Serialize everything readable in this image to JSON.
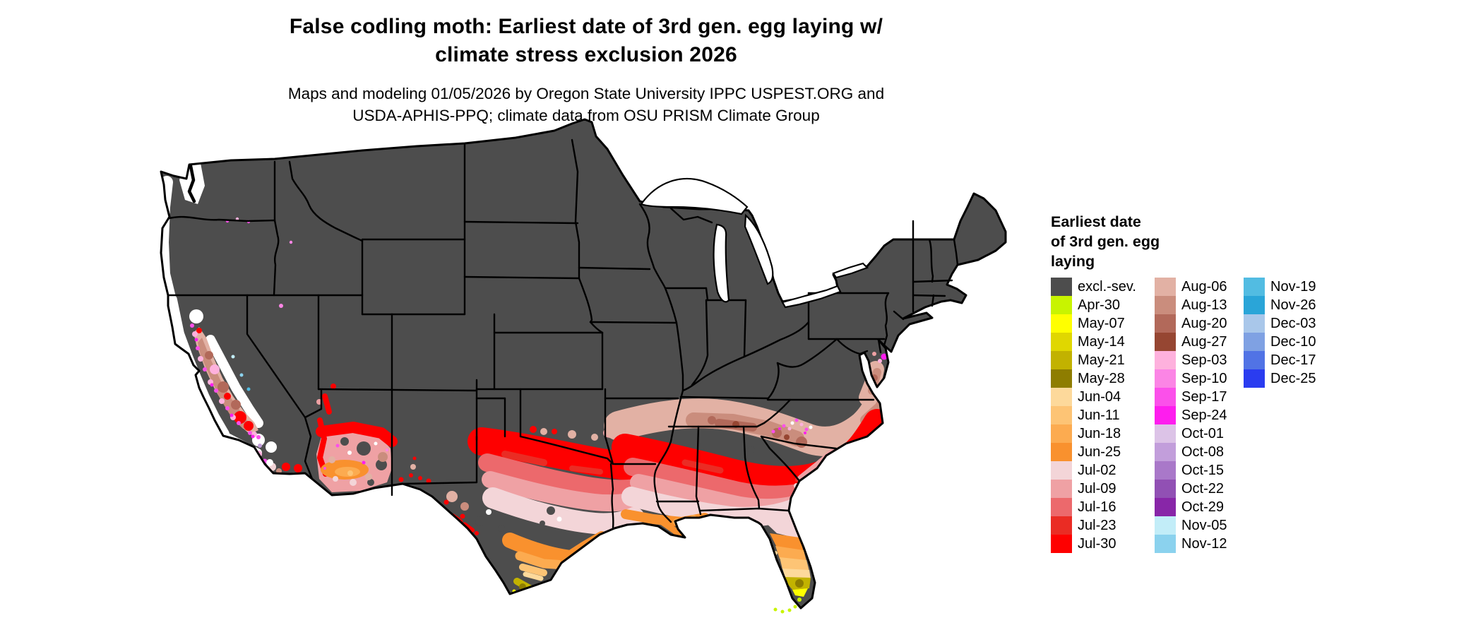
{
  "title": {
    "line1": "False codling moth: Earliest date of 3rd gen. egg laying w/",
    "line2": "climate stress exclusion 2026"
  },
  "subtitle": {
    "line1": "Maps and modeling 01/05/2026 by Oregon State University IPPC USPEST.ORG and",
    "line2": "USDA-APHIS-PPQ; climate data from OSU PRISM Climate Group"
  },
  "legend": {
    "title_lines": [
      "Earliest date",
      "of 3rd gen. egg",
      "laying"
    ],
    "columns": [
      15,
      15,
      6
    ],
    "entries": [
      {
        "label": "excl.-sev.",
        "color": "#4d4d4d"
      },
      {
        "label": "Apr-30",
        "color": "#c8f400"
      },
      {
        "label": "May-07",
        "color": "#ffff00"
      },
      {
        "label": "May-14",
        "color": "#e0d700"
      },
      {
        "label": "May-21",
        "color": "#c2b200"
      },
      {
        "label": "May-28",
        "color": "#8e7d00"
      },
      {
        "label": "Jun-04",
        "color": "#fdd99b"
      },
      {
        "label": "Jun-11",
        "color": "#fdc475"
      },
      {
        "label": "Jun-18",
        "color": "#fcab50"
      },
      {
        "label": "Jun-25",
        "color": "#f9912e"
      },
      {
        "label": "Jul-02",
        "color": "#f3d5d8"
      },
      {
        "label": "Jul-09",
        "color": "#efa1a4"
      },
      {
        "label": "Jul-16",
        "color": "#ec696c"
      },
      {
        "label": "Jul-23",
        "color": "#ea2c24"
      },
      {
        "label": "Jul-30",
        "color": "#fe0000"
      },
      {
        "label": "Aug-06",
        "color": "#e2b1a4"
      },
      {
        "label": "Aug-13",
        "color": "#ca8d7d"
      },
      {
        "label": "Aug-20",
        "color": "#b2695a"
      },
      {
        "label": "Aug-27",
        "color": "#964632"
      },
      {
        "label": "Sep-03",
        "color": "#feb1dd"
      },
      {
        "label": "Sep-10",
        "color": "#fb85e5"
      },
      {
        "label": "Sep-17",
        "color": "#fb50ea"
      },
      {
        "label": "Sep-24",
        "color": "#fe1dee"
      },
      {
        "label": "Oct-01",
        "color": "#dcc3e7"
      },
      {
        "label": "Oct-08",
        "color": "#c29edb"
      },
      {
        "label": "Oct-15",
        "color": "#a978c9"
      },
      {
        "label": "Oct-22",
        "color": "#9150b4"
      },
      {
        "label": "Oct-29",
        "color": "#8826a8"
      },
      {
        "label": "Nov-05",
        "color": "#c2edf8"
      },
      {
        "label": "Nov-12",
        "color": "#8bd2ee"
      },
      {
        "label": "Nov-19",
        "color": "#52bce2"
      },
      {
        "label": "Nov-26",
        "color": "#2aa5d8"
      },
      {
        "label": "Dec-03",
        "color": "#a9c7ea"
      },
      {
        "label": "Dec-10",
        "color": "#7fa1e3"
      },
      {
        "label": "Dec-17",
        "color": "#5173e5"
      },
      {
        "label": "Dec-25",
        "color": "#2a3cf0"
      }
    ]
  },
  "map": {
    "colors": {
      "excluded_base": "#4d4d4d",
      "state_border": "#000000",
      "no_data": "#ffffff",
      "water": "#ffffff"
    },
    "description": "CONUS map: most of country dark gray (excluded-severe climate stress); Pacific coast strip white; California Central Valley brown/tan with magenta fringe and red patches; southern Arizona red/orange/pink; Texas graded red to pink to orange to olive southward; Gulf/Southeast banded tan-brown then red then pink toward coast; Florida pink-orange-peach-olive-chartreuse southward; red strip along Carolina coast"
  }
}
